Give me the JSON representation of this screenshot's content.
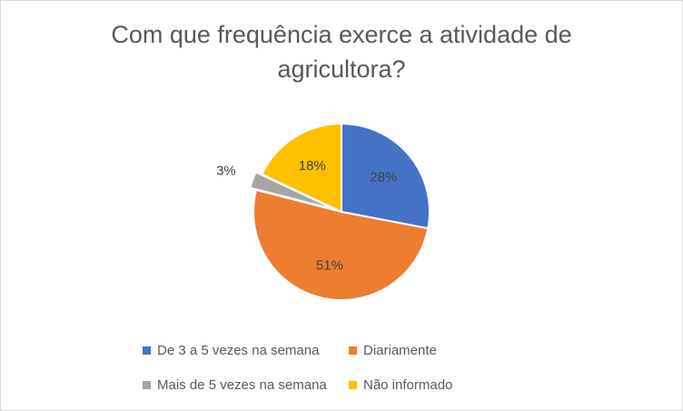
{
  "chart_data": {
    "type": "pie",
    "title": "Com que frequência exerce a atividade de\nagricultora?",
    "categories": [
      "De 3 a 5 vezes na semana",
      "Diariamente",
      "Mais de 5 vezes na semana",
      "Não informado"
    ],
    "values": [
      28,
      51,
      3,
      18
    ],
    "data_labels": [
      "28%",
      "51%",
      "3%",
      "18%"
    ],
    "colors": [
      "#4472C4",
      "#ED7D31",
      "#A5A5A5",
      "#FFC000"
    ],
    "exploded_slice": "Mais de 5 vezes na semana",
    "legend_position": "bottom"
  }
}
